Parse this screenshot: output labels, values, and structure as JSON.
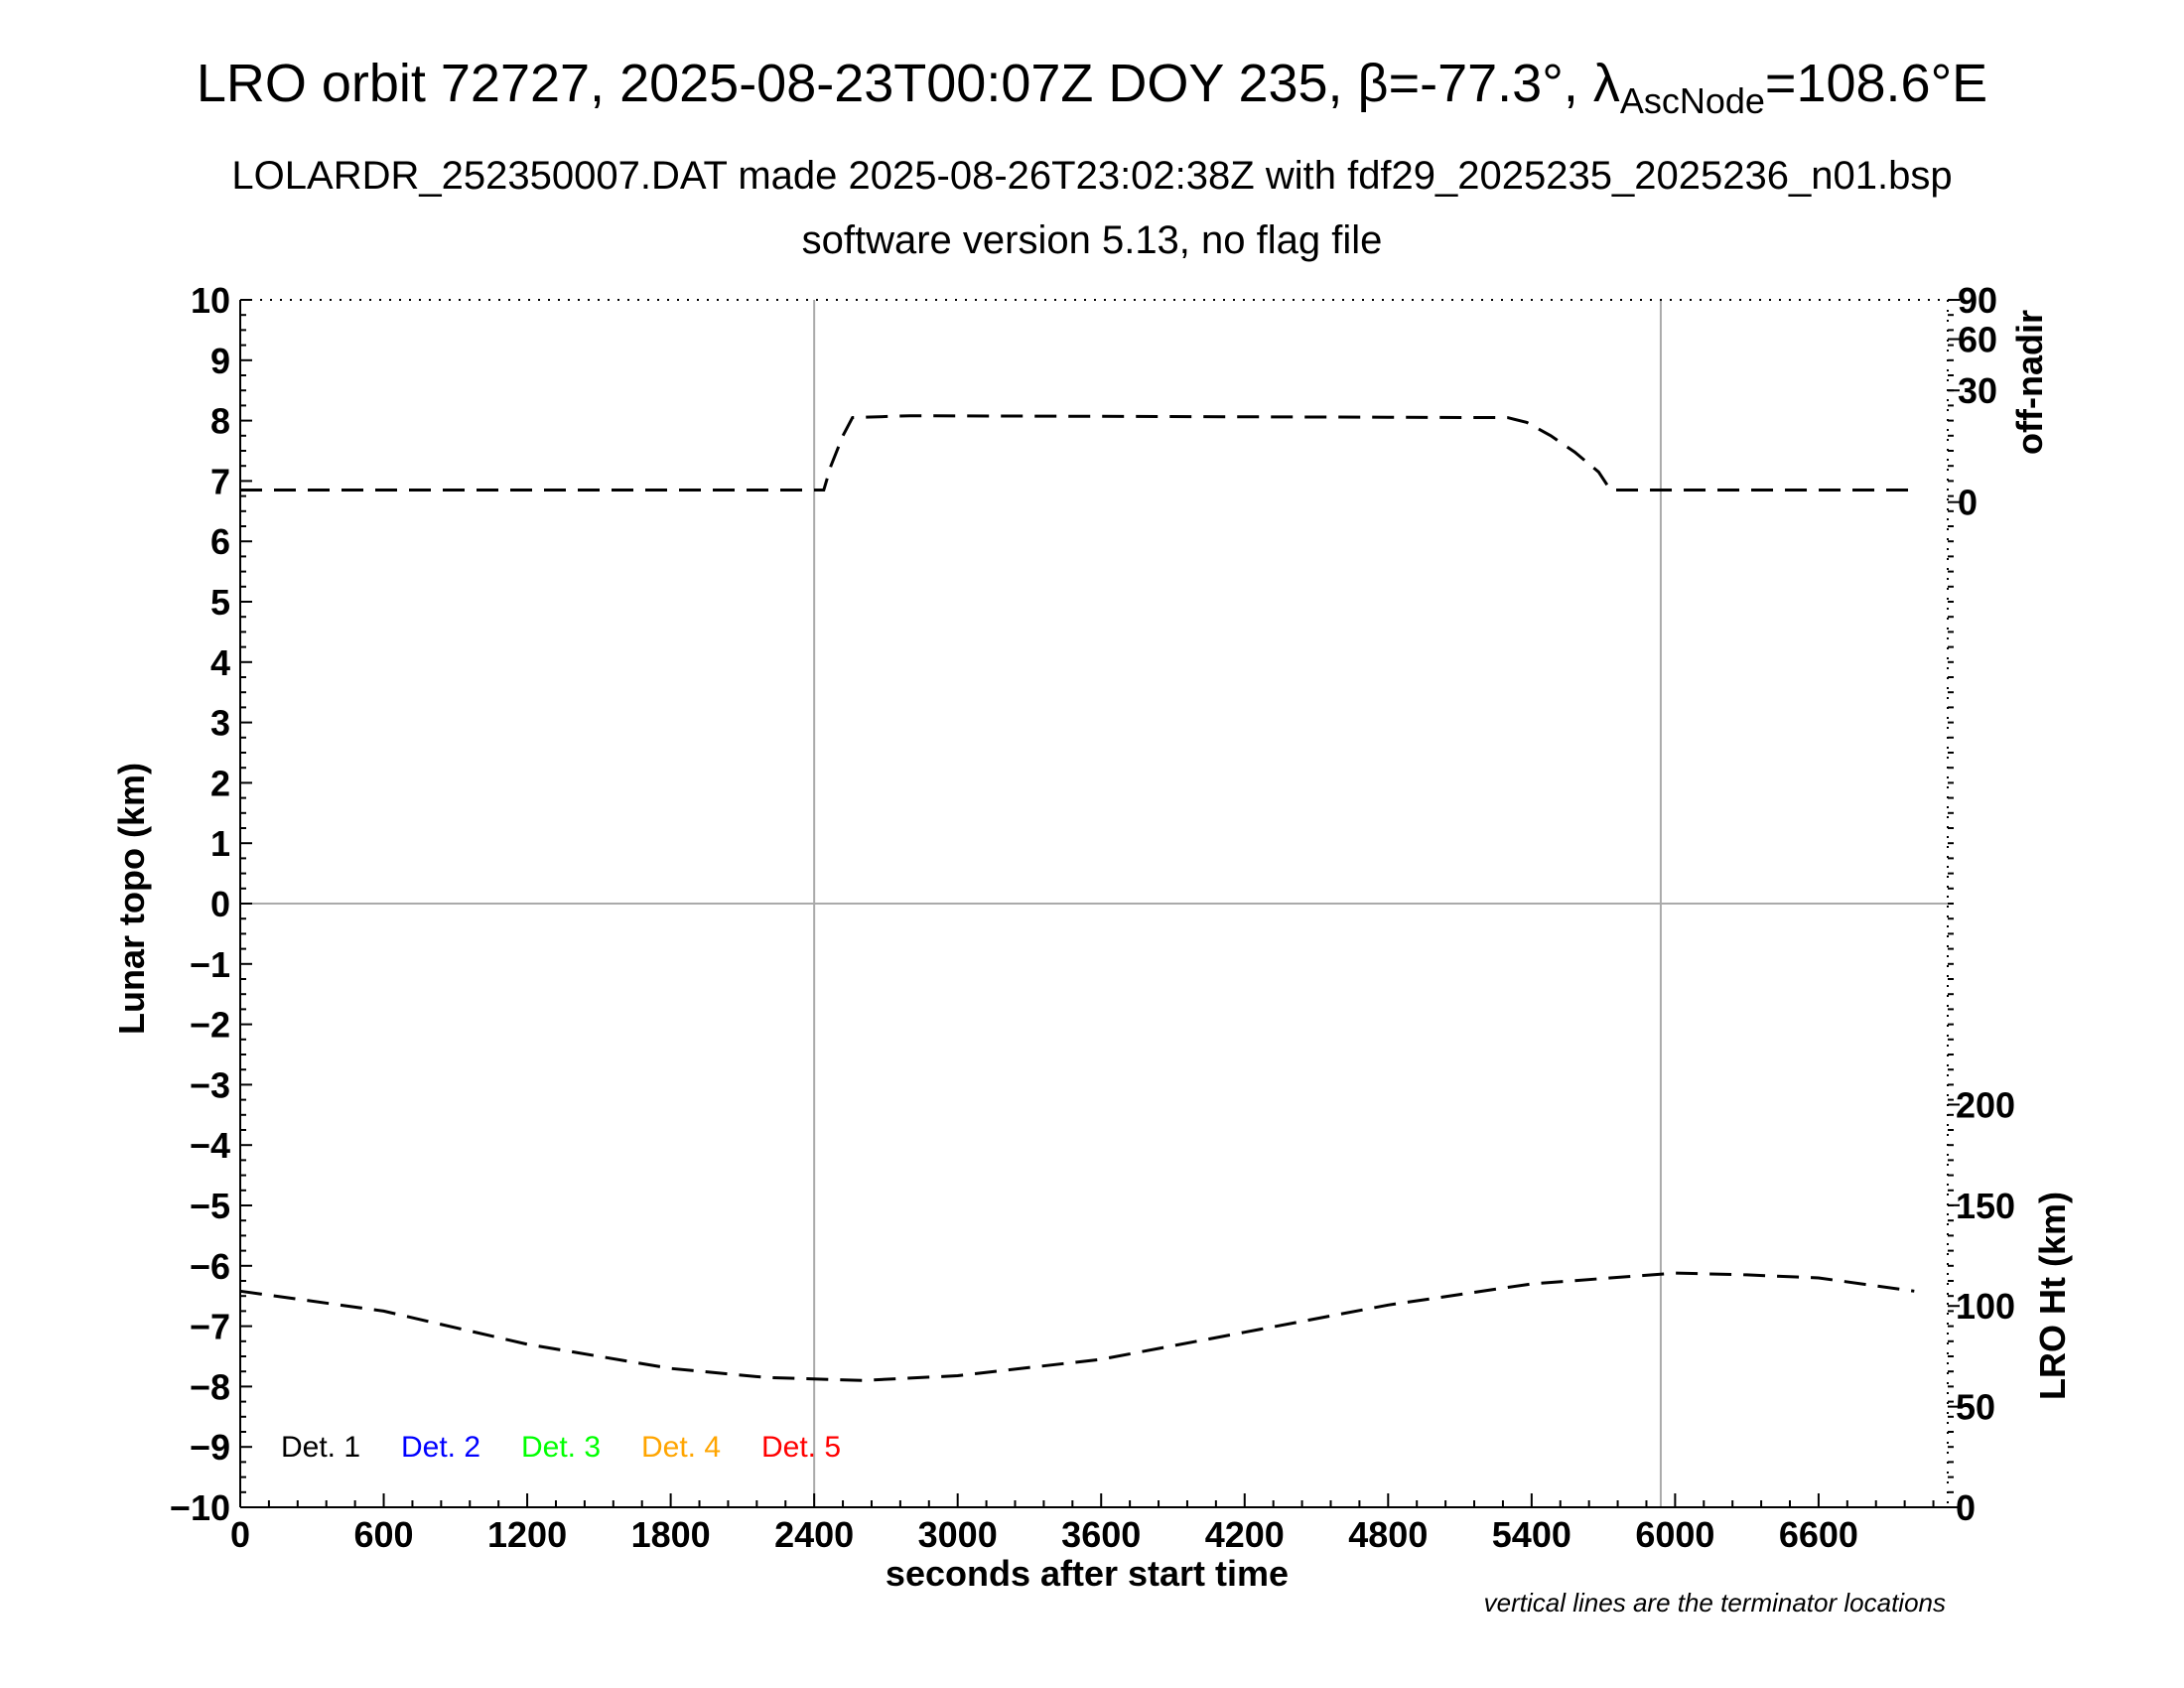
{
  "header": {
    "title_pre": "LRO orbit 72727, 2025-08-23T00:07Z DOY 235, β=-77.3°, λ",
    "title_sub": "AscNode",
    "title_post": "=108.6°E",
    "subtitle1": "LOLARDR_252350007.DAT made 2025-08-26T23:02:38Z with fdf29_2025235_2025236_n01.bsp",
    "subtitle2": "software version 5.13, no flag file"
  },
  "chart_data": {
    "type": "line",
    "xlabel": "seconds after start time",
    "ylabel_left": "Lunar topo (km)",
    "ylabel_right_top": "off-nadir",
    "ylabel_right_bottom": "LRO Ht (km)",
    "xlim": [
      0,
      7140
    ],
    "ylim_left": [
      -10,
      10
    ],
    "x_ticks": [
      0,
      600,
      1200,
      1800,
      2400,
      3000,
      3600,
      4200,
      4800,
      5400,
      6000,
      6600
    ],
    "y_ticks_left": [
      10,
      9,
      8,
      7,
      6,
      5,
      4,
      3,
      2,
      1,
      0,
      "−1",
      "−2",
      "−3",
      "−4",
      "−5",
      "−6",
      "−7",
      "−8",
      "−9",
      "−10"
    ],
    "off_nadir_ticks": [
      {
        "label": "90",
        "topo": 10.0
      },
      {
        "label": "60",
        "topo": 9.35
      },
      {
        "label": "30",
        "topo": 8.5
      },
      {
        "label": "0",
        "topo": 6.65
      }
    ],
    "lro_ht_ticks": [
      {
        "label": "200",
        "ht": 200
      },
      {
        "label": "150",
        "ht": 150
      },
      {
        "label": "100",
        "ht": 100
      },
      {
        "label": "50",
        "ht": 50
      },
      {
        "label": "0",
        "ht": 0
      }
    ],
    "lro_ht_range": [
      0,
      200
    ],
    "lro_ht_topo_range": [
      -10,
      -3.33
    ],
    "terminators": [
      2400,
      5940
    ],
    "series": [
      {
        "name": "off-nadir",
        "style": "dashed",
        "x": [
          0,
          2400,
          2440,
          2470,
          2520,
          2560,
          2800,
          5300,
          5380,
          5480,
          5580,
          5680,
          5730,
          5780,
          7000
        ],
        "y": [
          6.85,
          6.85,
          6.85,
          7.25,
          7.75,
          8.05,
          8.08,
          8.05,
          7.97,
          7.75,
          7.48,
          7.15,
          6.85,
          6.85,
          6.85
        ]
      },
      {
        "name": "LRO Ht",
        "style": "dashed",
        "x": [
          0,
          600,
          1200,
          1800,
          2200,
          2600,
          3000,
          3600,
          4200,
          4800,
          5400,
          6000,
          6300,
          6600,
          7000
        ],
        "y": [
          -6.42,
          -6.75,
          -7.3,
          -7.7,
          -7.85,
          -7.9,
          -7.82,
          -7.55,
          -7.1,
          -6.65,
          -6.3,
          -6.12,
          -6.15,
          -6.2,
          -6.42
        ]
      }
    ],
    "legend": [
      {
        "label": "Det. 1",
        "color": "#000000"
      },
      {
        "label": "Det. 2",
        "color": "#0000ff"
      },
      {
        "label": "Det. 3",
        "color": "#00ff00"
      },
      {
        "label": "Det. 4",
        "color": "#ffa500"
      },
      {
        "label": "Det. 5",
        "color": "#ff0000"
      }
    ],
    "legend_position": "bottom-left",
    "note": "vertical lines are the terminator locations",
    "grid": "terminator lines and zero line only"
  }
}
